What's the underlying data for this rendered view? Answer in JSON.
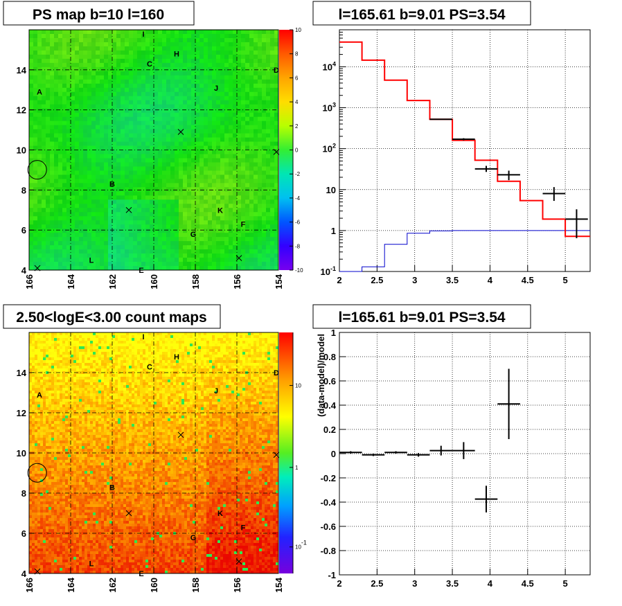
{
  "chart_data": [
    {
      "type": "heatmap",
      "title": "PS map b=10 l=160",
      "x_range": [
        166,
        154
      ],
      "y_range": [
        4,
        16
      ],
      "x_ticks": [
        "166",
        "164",
        "162",
        "160",
        "158",
        "156",
        "154"
      ],
      "y_ticks": [
        "4",
        "6",
        "8",
        "10",
        "12",
        "14"
      ],
      "palette_ticks": [
        "10",
        "8",
        "6",
        "4",
        "2",
        "0",
        "-2",
        "-4",
        "-6",
        "-8",
        "-10"
      ],
      "grid": true,
      "labels": [
        {
          "text": "I",
          "l": 160.5,
          "b": 15.8
        },
        {
          "text": "H",
          "l": 158.9,
          "b": 14.8
        },
        {
          "text": "C",
          "l": 160.2,
          "b": 14.3
        },
        {
          "text": "D",
          "l": 154.1,
          "b": 14.0
        },
        {
          "text": "J",
          "l": 157.0,
          "b": 13.1
        },
        {
          "text": "A",
          "l": 165.5,
          "b": 12.9
        },
        {
          "text": "B",
          "l": 162.0,
          "b": 8.3
        },
        {
          "text": "K",
          "l": 156.8,
          "b": 7.0
        },
        {
          "text": "F",
          "l": 155.7,
          "b": 6.3
        },
        {
          "text": "G",
          "l": 158.1,
          "b": 5.8
        },
        {
          "text": "L",
          "l": 163.0,
          "b": 4.5
        },
        {
          "text": "E",
          "l": 160.6,
          "b": 4.0
        }
      ],
      "cross_markers": [
        [
          158.7,
          10.9
        ],
        [
          161.2,
          7.0
        ],
        [
          155.9,
          4.6
        ],
        [
          154.1,
          9.9
        ],
        [
          165.6,
          4.1
        ]
      ],
      "circle": {
        "l": 165.61,
        "b": 9.01,
        "r": 0.45
      }
    },
    {
      "type": "line",
      "title": "l=165.61 b=9.01 PS=3.54",
      "log_y": true,
      "xlim": [
        2,
        5.33
      ],
      "ylim": [
        0.1,
        80000
      ],
      "x_ticks": [
        "2",
        "2.5",
        "3",
        "3.5",
        "4",
        "4.5",
        "5"
      ],
      "y_ticks": [
        "10^-1",
        "1",
        "10",
        "10^2",
        "10^3",
        "10^4"
      ],
      "grid": true,
      "model_edges": [
        2,
        2.3,
        2.6,
        2.9,
        3.2,
        3.5,
        3.8,
        4.1,
        4.4,
        4.7,
        5.0,
        5.33
      ],
      "model_red": [
        40000,
        14500,
        4700,
        1500,
        520,
        160,
        52,
        16,
        5.4,
        1.9,
        0.72
      ],
      "model_blue": [
        0.1,
        0.13,
        0.46,
        0.86,
        0.98,
        1.0,
        1.0,
        1.0,
        1.0,
        1.0,
        1.0
      ],
      "data_points": [
        {
          "x": 3.35,
          "y": 520,
          "xerr": 0.15,
          "ylo": 510,
          "yhi": 530
        },
        {
          "x": 3.65,
          "y": 170,
          "xerr": 0.15,
          "ylo": 160,
          "yhi": 180
        },
        {
          "x": 3.95,
          "y": 32,
          "xerr": 0.15,
          "ylo": 27,
          "yhi": 38
        },
        {
          "x": 4.25,
          "y": 23,
          "xerr": 0.15,
          "ylo": 17,
          "yhi": 29
        },
        {
          "x": 4.85,
          "y": 8,
          "xerr": 0.15,
          "ylo": 5.3,
          "yhi": 11.5
        },
        {
          "x": 5.15,
          "y": 1.9,
          "xerr": 0.15,
          "ylo": 0.65,
          "yhi": 3.3
        }
      ]
    },
    {
      "type": "heatmap",
      "title": "2.50<logE<3.00 count maps",
      "x_range": [
        166,
        154
      ],
      "y_range": [
        4,
        16
      ],
      "x_ticks": [
        "166",
        "164",
        "162",
        "160",
        "158",
        "156",
        "154"
      ],
      "y_ticks": [
        "4",
        "6",
        "8",
        "10",
        "12",
        "14"
      ],
      "palette_ticks": [
        "10",
        "1",
        "10^-1"
      ],
      "grid": true
    },
    {
      "type": "scatter",
      "title": "l=165.61 b=9.01 PS=3.54",
      "ylabel": "(data-model)/model",
      "xlim": [
        2,
        5.33
      ],
      "ylim": [
        -1,
        1
      ],
      "x_ticks": [
        "2",
        "2.5",
        "3",
        "3.5",
        "4",
        "4.5",
        "5"
      ],
      "y_ticks": [
        "-1",
        "-0.8",
        "-0.6",
        "-0.4",
        "-0.2",
        "0",
        "0.2",
        "0.4",
        "0.6",
        "0.8",
        "1"
      ],
      "grid": true,
      "data_points": [
        {
          "x": 2.15,
          "y": 0.01,
          "xerr": 0.15,
          "yerr": 0.01
        },
        {
          "x": 2.45,
          "y": -0.01,
          "xerr": 0.15,
          "yerr": 0.01
        },
        {
          "x": 2.75,
          "y": 0.01,
          "xerr": 0.15,
          "yerr": 0.01
        },
        {
          "x": 3.05,
          "y": -0.01,
          "xerr": 0.15,
          "yerr": 0.015
        },
        {
          "x": 3.35,
          "y": 0.025,
          "xerr": 0.15,
          "yerr": 0.04
        },
        {
          "x": 3.65,
          "y": 0.025,
          "xerr": 0.15,
          "yerr": 0.07
        },
        {
          "x": 3.95,
          "y": -0.375,
          "xerr": 0.15,
          "yerr": 0.11
        },
        {
          "x": 4.25,
          "y": 0.41,
          "xerr": 0.15,
          "yerr": 0.29
        }
      ]
    }
  ]
}
